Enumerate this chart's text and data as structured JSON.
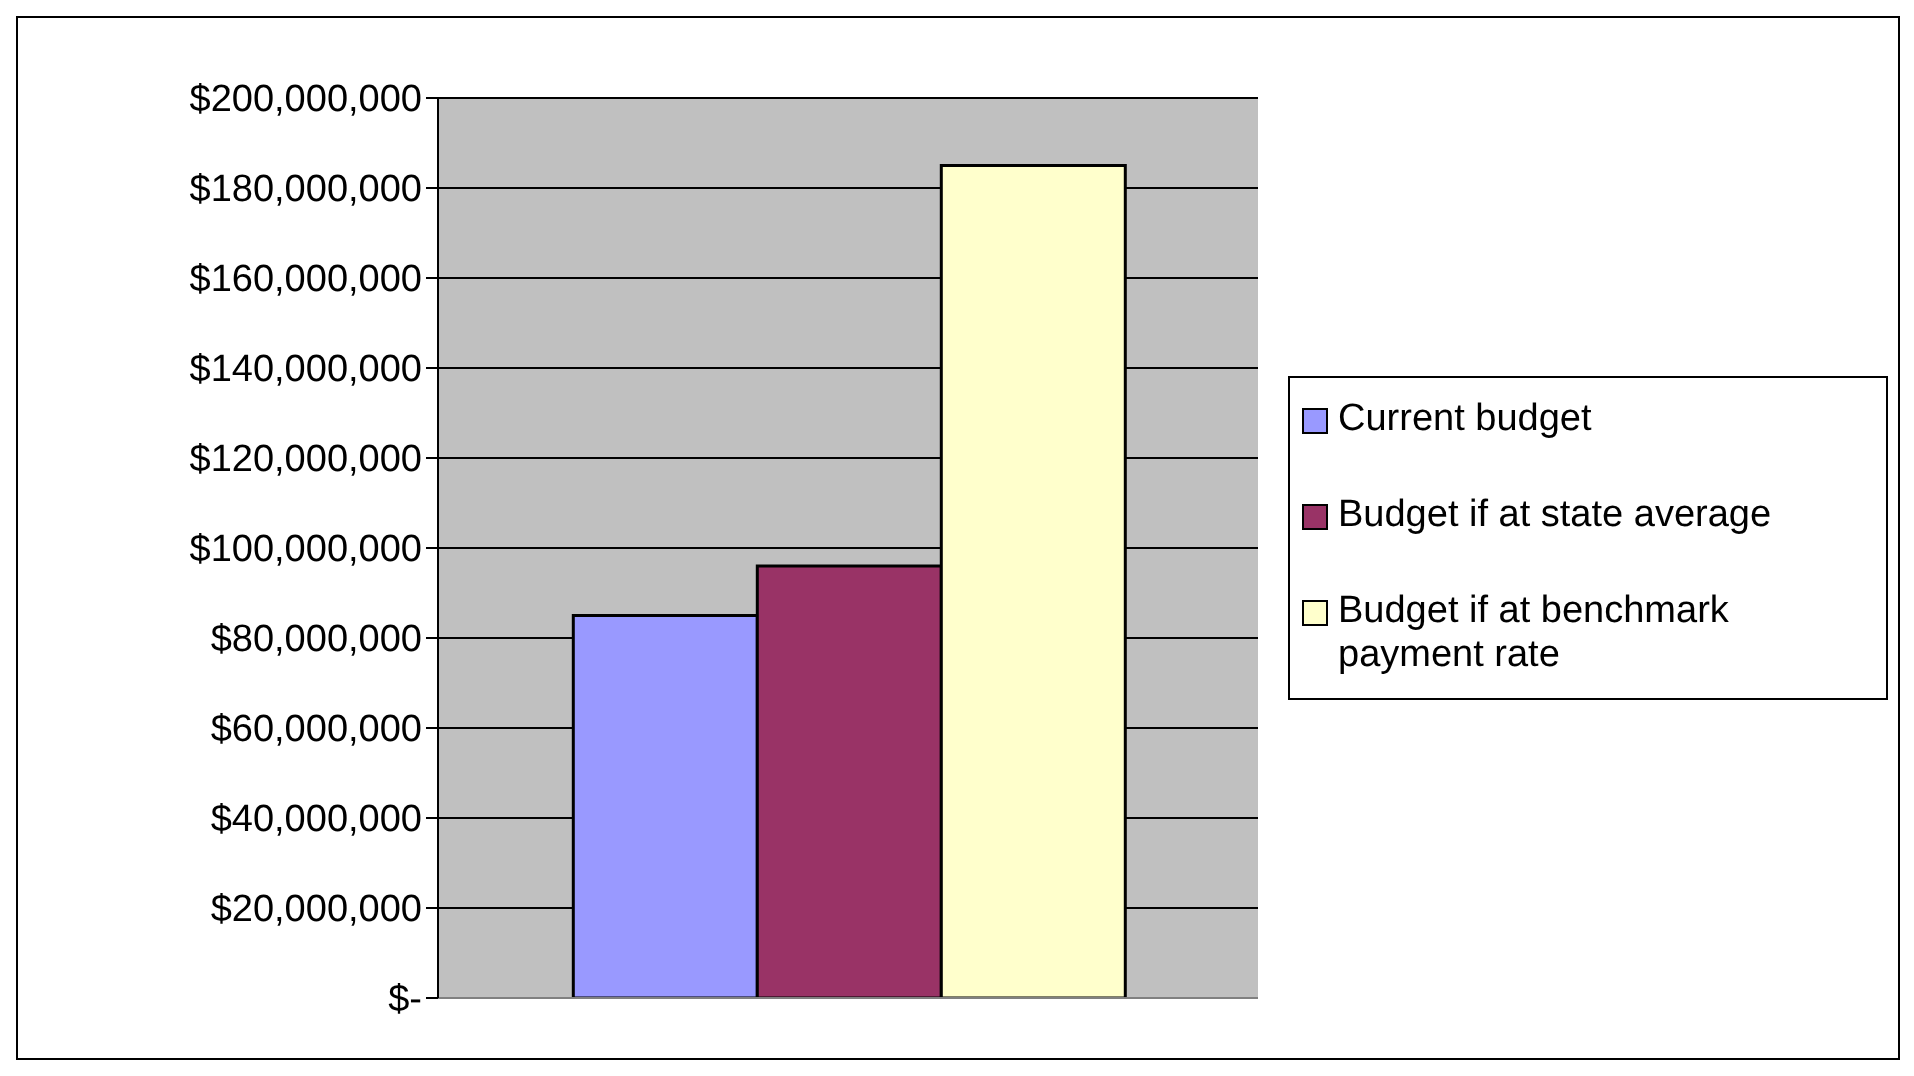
{
  "chart_data": {
    "type": "bar",
    "categories": [
      null
    ],
    "series": [
      {
        "name": "Current budget",
        "color": "#9999ff",
        "values": [
          85000000
        ]
      },
      {
        "name": "Budget if at state average",
        "color": "#993366",
        "values": [
          96000000
        ]
      },
      {
        "name": "Budget if at benchmark payment rate",
        "color": "#ffffcc",
        "values": [
          185000000
        ]
      }
    ],
    "ylim": [
      0,
      200000000
    ],
    "yticks": [
      {
        "value": 0,
        "label": "$-"
      },
      {
        "value": 20000000,
        "label": "$20,000,000"
      },
      {
        "value": 40000000,
        "label": "$40,000,000"
      },
      {
        "value": 60000000,
        "label": "$60,000,000"
      },
      {
        "value": 80000000,
        "label": "$80,000,000"
      },
      {
        "value": 100000000,
        "label": "$100,000,000"
      },
      {
        "value": 120000000,
        "label": "$120,000,000"
      },
      {
        "value": 140000000,
        "label": "$140,000,000"
      },
      {
        "value": 160000000,
        "label": "$160,000,000"
      },
      {
        "value": 180000000,
        "label": "$180,000,000"
      },
      {
        "value": 200000000,
        "label": "$200,000,000"
      }
    ],
    "grid": "y",
    "legend": "right"
  }
}
